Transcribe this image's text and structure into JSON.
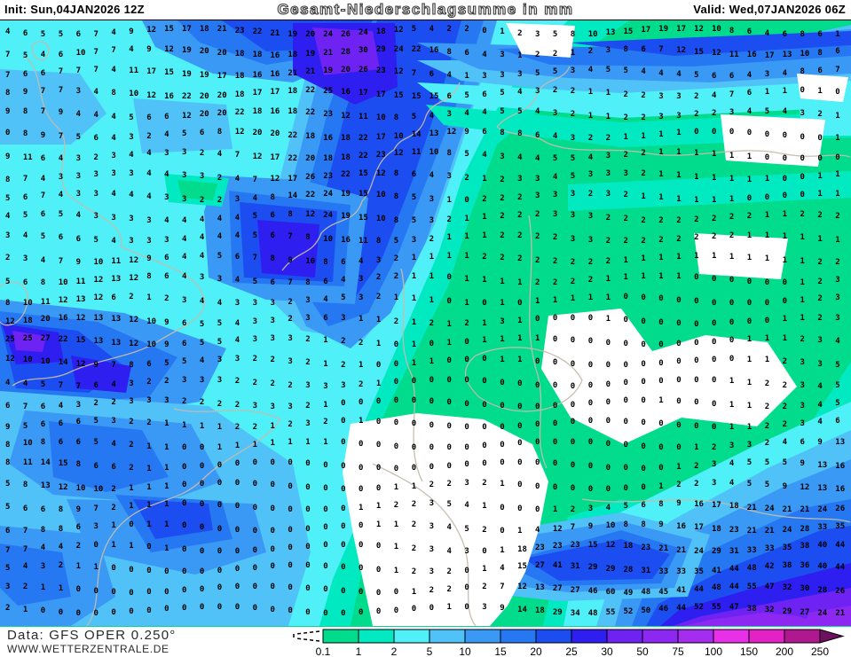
{
  "header": {
    "init_label": "Init: Sun,04JAN2026 12Z",
    "title": "Gesamt-Niederschlagsumme in mm",
    "valid_label": "Valid: Wed,07JAN2026 06Z"
  },
  "footer": {
    "data_source": "Data: GFS OPER 0.250°",
    "website": "WWW.WETTERZENTRALE.DE"
  },
  "legend": {
    "ticks": [
      "0.1",
      "1",
      "2",
      "5",
      "10",
      "15",
      "20",
      "25",
      "30",
      "50",
      "75",
      "100",
      "150",
      "200",
      "250"
    ],
    "colors": [
      "#00DC8C",
      "#00E9C0",
      "#50F0F8",
      "#50C2F8",
      "#3A99F5",
      "#2678F2",
      "#1C4DF0",
      "#2E1EF0",
      "#6E23F2",
      "#8C28F2",
      "#A52DF0",
      "#E830E8",
      "#E322C6",
      "#B01890"
    ],
    "arrow_color": "#6E1060",
    "trace_marker": "dashed-funnel-below-0.1"
  },
  "map": {
    "units": "mm",
    "value_rows": [
      "4 6 5 5 6 7 4 9 12 15 17 18 21 23 22 21 19 20 24 26 24 18 12 5 4 2 2 0 1 2 3 5 8 10 13 15 17 19 17 12 10 8 6 4 6 8 6 1",
      "7 5 4 6 10 7 7 4 9 12 19 20 20 18 18 16 18 19 21 28 30 29 24 22 16 8 6 4 3 1 2 2 1 2 3 8 6 7 12 15 12 11 16 17 13 10 8 6",
      "7 6 6 7 7 7 4 11 17 15 19 19 17 18 16 16 21 21 19 20 26 23 12 7 6 4 1 3 3 3 5 5 3 4 5 5 4 4 4 5 6 6 4 3 4 8 6 7",
      "8 9 7 7 3 4 8 10 12 16 22 20 20 18 17 17 18 22 25 16 17 17 15 15 15 6 5 6 5 4 3 2 2 1 1 2 2 3 3 2 4 7 6 1 1 0 1 0",
      "9 8 7 9 4 4 4 5 6 6 12 20 20 22 18 16 18 22 23 12 11 10 8 5 4 3 4 4 5 5 4 3 2 1 1 2 2 3 3 2 2 3 4 5 4 3 2 1",
      "0 8 9 7 5 6 4 3 2 4 5 6 8 12 20 20 22 18 16 18 22 17 10 14 13 12 9 6 8 8 6 4 3 2 2 1 1 1 1 0 0 0 0 0 0 0 0 1",
      "9 11 6 4 3 2 3 4 4 3 3 2 4 7 12 17 22 20 18 18 22 23 12 11 10 8 5 4 3 4 4 5 5 4 3 2 2 1 1 1 1 1 1 0 0 0 0 0",
      "8 7 4 3 3 3 3 3 4 4 3 3 2 4 7 12 17 26 23 22 15 12 8 6 4 3 2 1 2 3 3 4 5 3 3 3 2 1 1 1 1 1 1 1 0 0 1 1",
      "5 6 7 4 3 3 4 4 4 3 3 2 2 3 4 8 14 22 24 19 15 10 8 5 3 1 0 2 2 2 3 3 3 2 3 2 1 1 1 1 1 1 0 0 0 0 1 1",
      "4 5 6 5 4 3 3 3 3 4 4 4 4 4 5 6 8 12 24 19 15 10 8 5 3 2 1 1 2 2 2 3 3 3 2 2 2 2 2 2 2 2 2 1 1 2 2 2",
      "3 4 5 6 6 5 4 3 3 3 4 4 4 4 5 6 7 8 10 16 11 8 5 3 2 1 1 1 2 2 2 2 3 3 2 2 2 2 2 2 2 2 1 1 1 1 1 1",
      "2 3 4 7 9 10 11 12 9 6 4 4 5 6 7 8 9 10 8 6 4 3 2 1 1 1 1 2 2 2 2 2 2 2 2 1 1 1 1 1 1 1 1 1 1 1 2 2",
      "5 6 8 10 11 12 13 12 8 6 4 3 3 4 5 6 7 8 6 4 3 2 2 1 1 0 1 1 1 1 2 2 2 2 1 1 1 1 1 0 0 0 0 0 0 1 2 3",
      "8 10 11 12 13 12 6 2 1 2 3 4 4 3 3 3 2 3 4 5 3 2 1 1 1 0 1 0 1 0 1 1 1 1 1 0 0 0 0 0 0 0 0 0 0 1 2 3",
      "12 18 20 16 12 13 13 12 10 9 6 5 5 4 3 3 2 3 6 3 1 1 2 1 2 1 2 1 3 1 0 0 0 0 1 0 0 0 0 0 0 0 0 0 1 1 2 3",
      "25 25 27 22 15 13 13 12 10 9 6 5 5 4 3 3 3 2 1 2 2 1 0 1 0 1 0 1 1 1 1 0 0 0 0 0 0 0 0 0 0 0 1 1 1 2 3 4",
      "12 10 10 14 12 9 7 8 6 5 5 4 3 3 2 2 3 2 1 2 1 0 0 1 1 0 0 0 1 1 0 0 0 0 0 0 0 0 0 0 0 0 1 1 2 3 3 5",
      "4 4 5 7 7 6 4 3 2 2 3 3 3 2 2 2 2 3 3 3 2 1 0 0 0 0 0 0 0 0 0 0 0 0 0 0 0 0 0 0 0 1 1 2 2 3 4 5",
      "6 7 6 4 3 2 2 3 3 3 2 2 2 2 3 3 3 2 1 0 0 0 0 0 0 0 0 0 0 0 0 0 0 0 0 0 0 1 0 0 0 1 1 2 2 3 4 5",
      "9 5 6 6 6 5 3 2 2 1 1 1 1 2 2 1 2 3 2 0 1 0 0 0 0 0 0 0 0 0 0 0 0 0 0 0 0 0 0 0 0 1 1 2 2 3 4 6",
      "8 10 8 6 6 5 4 2 1 1 0 0 1 1 1 1 1 1 1 0 0 0 0 0 0 0 0 0 0 0 0 0 0 0 0 0 0 0 0 1 2 3 3 2 4 6 9 13",
      "8 11 14 15 8 6 6 2 1 1 0 0 0 0 0 0 0 0 0 0 0 0 0 0 0 0 0 0 0 0 0 0 0 0 0 0 0 0 1 2 3 4 5 5 5 9 13 16",
      "5 8 13 12 10 10 2 1 1 1 0 0 0 0 0 0 0 0 0 0 0 0 1 1 2 2 3 2 1 0 0 0 0 0 0 0 0 1 2 2 3 4 5 5 9 12 13 16",
      "5 6 6 8 9 7 2 1 1 1 0 0 0 0 0 0 0 0 0 0 1 1 2 2 3 5 4 1 0 0 0 1 2 3 4 5 6 8 9 16 17 18 21 24 21 21 24 26",
      "6 7 8 8 6 3 1 0 1 1 0 0 0 0 0 0 0 0 0 0 0 1 1 2 3 4 5 2 0 1 4 12 7 9 10 8 8 9 16 17 18 23 21 21 24 28 33 35",
      "7 7 4 4 2 0 1 1 0 1 0 0 0 0 0 0 0 0 0 0 0 0 1 2 3 4 3 0 1 18 23 23 23 15 12 18 23 21 21 24 29 31 33 33 35 38 40 44",
      "5 4 3 2 1 1 0 0 0 0 0 0 0 0 0 0 0 0 0 0 0 0 1 2 3 2 0 1 4 15 27 41 31 29 29 28 31 33 33 35 41 44 48 42 38 36 40 44",
      "3 2 1 1 0 0 0 0 0 0 0 0 0 0 0 0 0 0 0 0 0 0 0 1 2 2 0 2 7 12 13 27 27 46 60 49 48 45 41 44 48 44 55 47 32 30 28 26",
      "2 1 0 0 0 0 0 0 0 0 0 0 0 0 0 0 0 0 0 0 0 0 0 0 0 1 0 3 9 14 18 29 34 48 55 52 50 46 44 52 55 47 38 32 29 27 24 21"
    ]
  }
}
